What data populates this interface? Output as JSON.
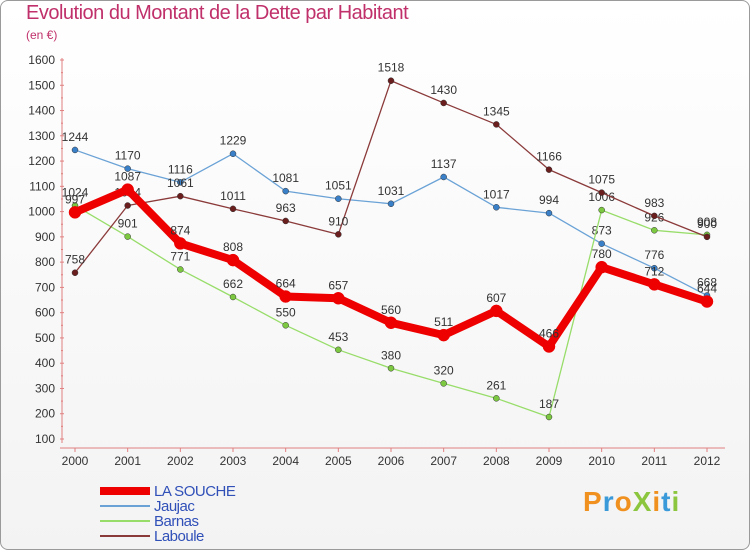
{
  "title": "Evolution du Montant de la Dette par Habitant",
  "unit": "(en €)",
  "logo": {
    "text": "ProXiti",
    "letters": [
      {
        "ch": "P",
        "color": "#f0901e"
      },
      {
        "ch": "r",
        "color": "#3a9ad9"
      },
      {
        "ch": "o",
        "color": "#f0901e"
      },
      {
        "ch": "X",
        "color": "#8cc63f"
      },
      {
        "ch": "i",
        "color": "#f0901e"
      },
      {
        "ch": "t",
        "color": "#3a9ad9"
      },
      {
        "ch": "i",
        "color": "#8cc63f"
      }
    ]
  },
  "chart_data": {
    "type": "line",
    "title": "Evolution du Montant de la Dette par Habitant",
    "ylabel": "(en €)",
    "x": [
      "2000",
      "2001",
      "2002",
      "2003",
      "2004",
      "2005",
      "2006",
      "2007",
      "2008",
      "2009",
      "2010",
      "2011",
      "2012"
    ],
    "ylim": [
      100,
      1600
    ],
    "yticks": [
      100,
      200,
      300,
      400,
      500,
      600,
      700,
      800,
      900,
      1000,
      1100,
      1200,
      1300,
      1400,
      1500,
      1600
    ],
    "grid": false,
    "legend": "bottom-left",
    "series": [
      {
        "name": "Jaujac",
        "color": "#6aa2d6",
        "marker": "#3a80c8",
        "width": 1.3,
        "values": [
          1244,
          1170,
          1116,
          1229,
          1081,
          1051,
          1031,
          1137,
          1017,
          994,
          873,
          776,
          668
        ]
      },
      {
        "name": "Barnas",
        "color": "#98dd6a",
        "marker": "#7cc840",
        "width": 1.3,
        "values": [
          1024,
          901,
          771,
          662,
          550,
          453,
          380,
          320,
          261,
          187,
          1006,
          926,
          908
        ]
      },
      {
        "name": "Laboule",
        "color": "#8b3a3a",
        "marker": "#6b1e1e",
        "width": 1.3,
        "values": [
          758,
          1024,
          1061,
          1011,
          963,
          910,
          1518,
          1430,
          1345,
          1166,
          1075,
          983,
          900
        ]
      },
      {
        "name": "LA SOUCHE",
        "color": "#ee0000",
        "marker": "#ee0000",
        "width": 8,
        "values": [
          997,
          1087,
          874,
          808,
          664,
          657,
          560,
          511,
          607,
          466,
          780,
          712,
          644
        ]
      }
    ],
    "legend_order": [
      "LA SOUCHE",
      "Jaujac",
      "Barnas",
      "Laboule"
    ],
    "legend_colors": {
      "LA SOUCHE": "#ee0000",
      "Jaujac": "#6aa2d6",
      "Barnas": "#98dd6a",
      "Laboule": "#8b3a3a"
    },
    "legend_text_color": "#3050b8"
  }
}
